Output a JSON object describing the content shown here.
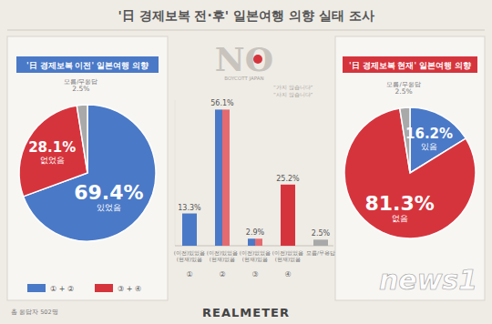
{
  "page": {
    "title": "'日 경제보복 전·후' 일본여행 의향 실태 조사",
    "logo": [
      "NO",
      "BOYCOTT JAPAN",
      "“가지 않습니다”",
      "“사지 않습니다”"
    ],
    "footer": "총 응답자 502명",
    "brand": "REALMETER",
    "watermark": "news1"
  },
  "chart_data": [
    {
      "type": "pie",
      "title": "'日 경제보복 이전' 일본여행 의향",
      "categories": [
        "있었음",
        "없었음",
        "모름/무응답"
      ],
      "values": [
        69.4,
        28.1,
        2.5
      ],
      "value_labels": [
        "69.4%",
        "28.1%",
        "2.5%"
      ],
      "colors": [
        "#4a79c7",
        "#d6343d",
        "#a9a9a9"
      ],
      "data_labels": true,
      "annotations": [
        "① + ②",
        "③ + ④"
      ]
    },
    {
      "type": "bar",
      "categories": [
        "(이전)있었음 (현재)있음",
        "(이전)있었음 (현재)없음",
        "(이전)없었음 (현재)있음",
        "(이전)없었음 (현재)없음",
        "모름/무응답"
      ],
      "values": [
        13.3,
        56.1,
        2.9,
        25.2,
        2.5
      ],
      "value_labels": [
        "13.3%",
        "56.1%",
        "2.9%",
        "25.2%",
        "2.5%"
      ],
      "colors": [
        "#4a79c7",
        [
          "#4a79c7",
          "#e46a70"
        ],
        [
          "#4a79c7",
          "#e46a70"
        ],
        "#d6343d",
        "#a9a9a9"
      ],
      "annotations": [
        "①",
        "②",
        "③",
        "④"
      ],
      "ylim": [
        0,
        60
      ],
      "tick_labels": false,
      "data_labels": true
    },
    {
      "type": "pie",
      "title": "'日 경제보복 현재' 일본여행 의향",
      "categories": [
        "있음",
        "없음",
        "모름/무응답"
      ],
      "values": [
        16.2,
        81.3,
        2.5
      ],
      "value_labels": [
        "16.2%",
        "81.3%",
        "2.5%"
      ],
      "colors": [
        "#4a79c7",
        "#d6343d",
        "#a9a9a9"
      ],
      "data_labels": true
    }
  ]
}
